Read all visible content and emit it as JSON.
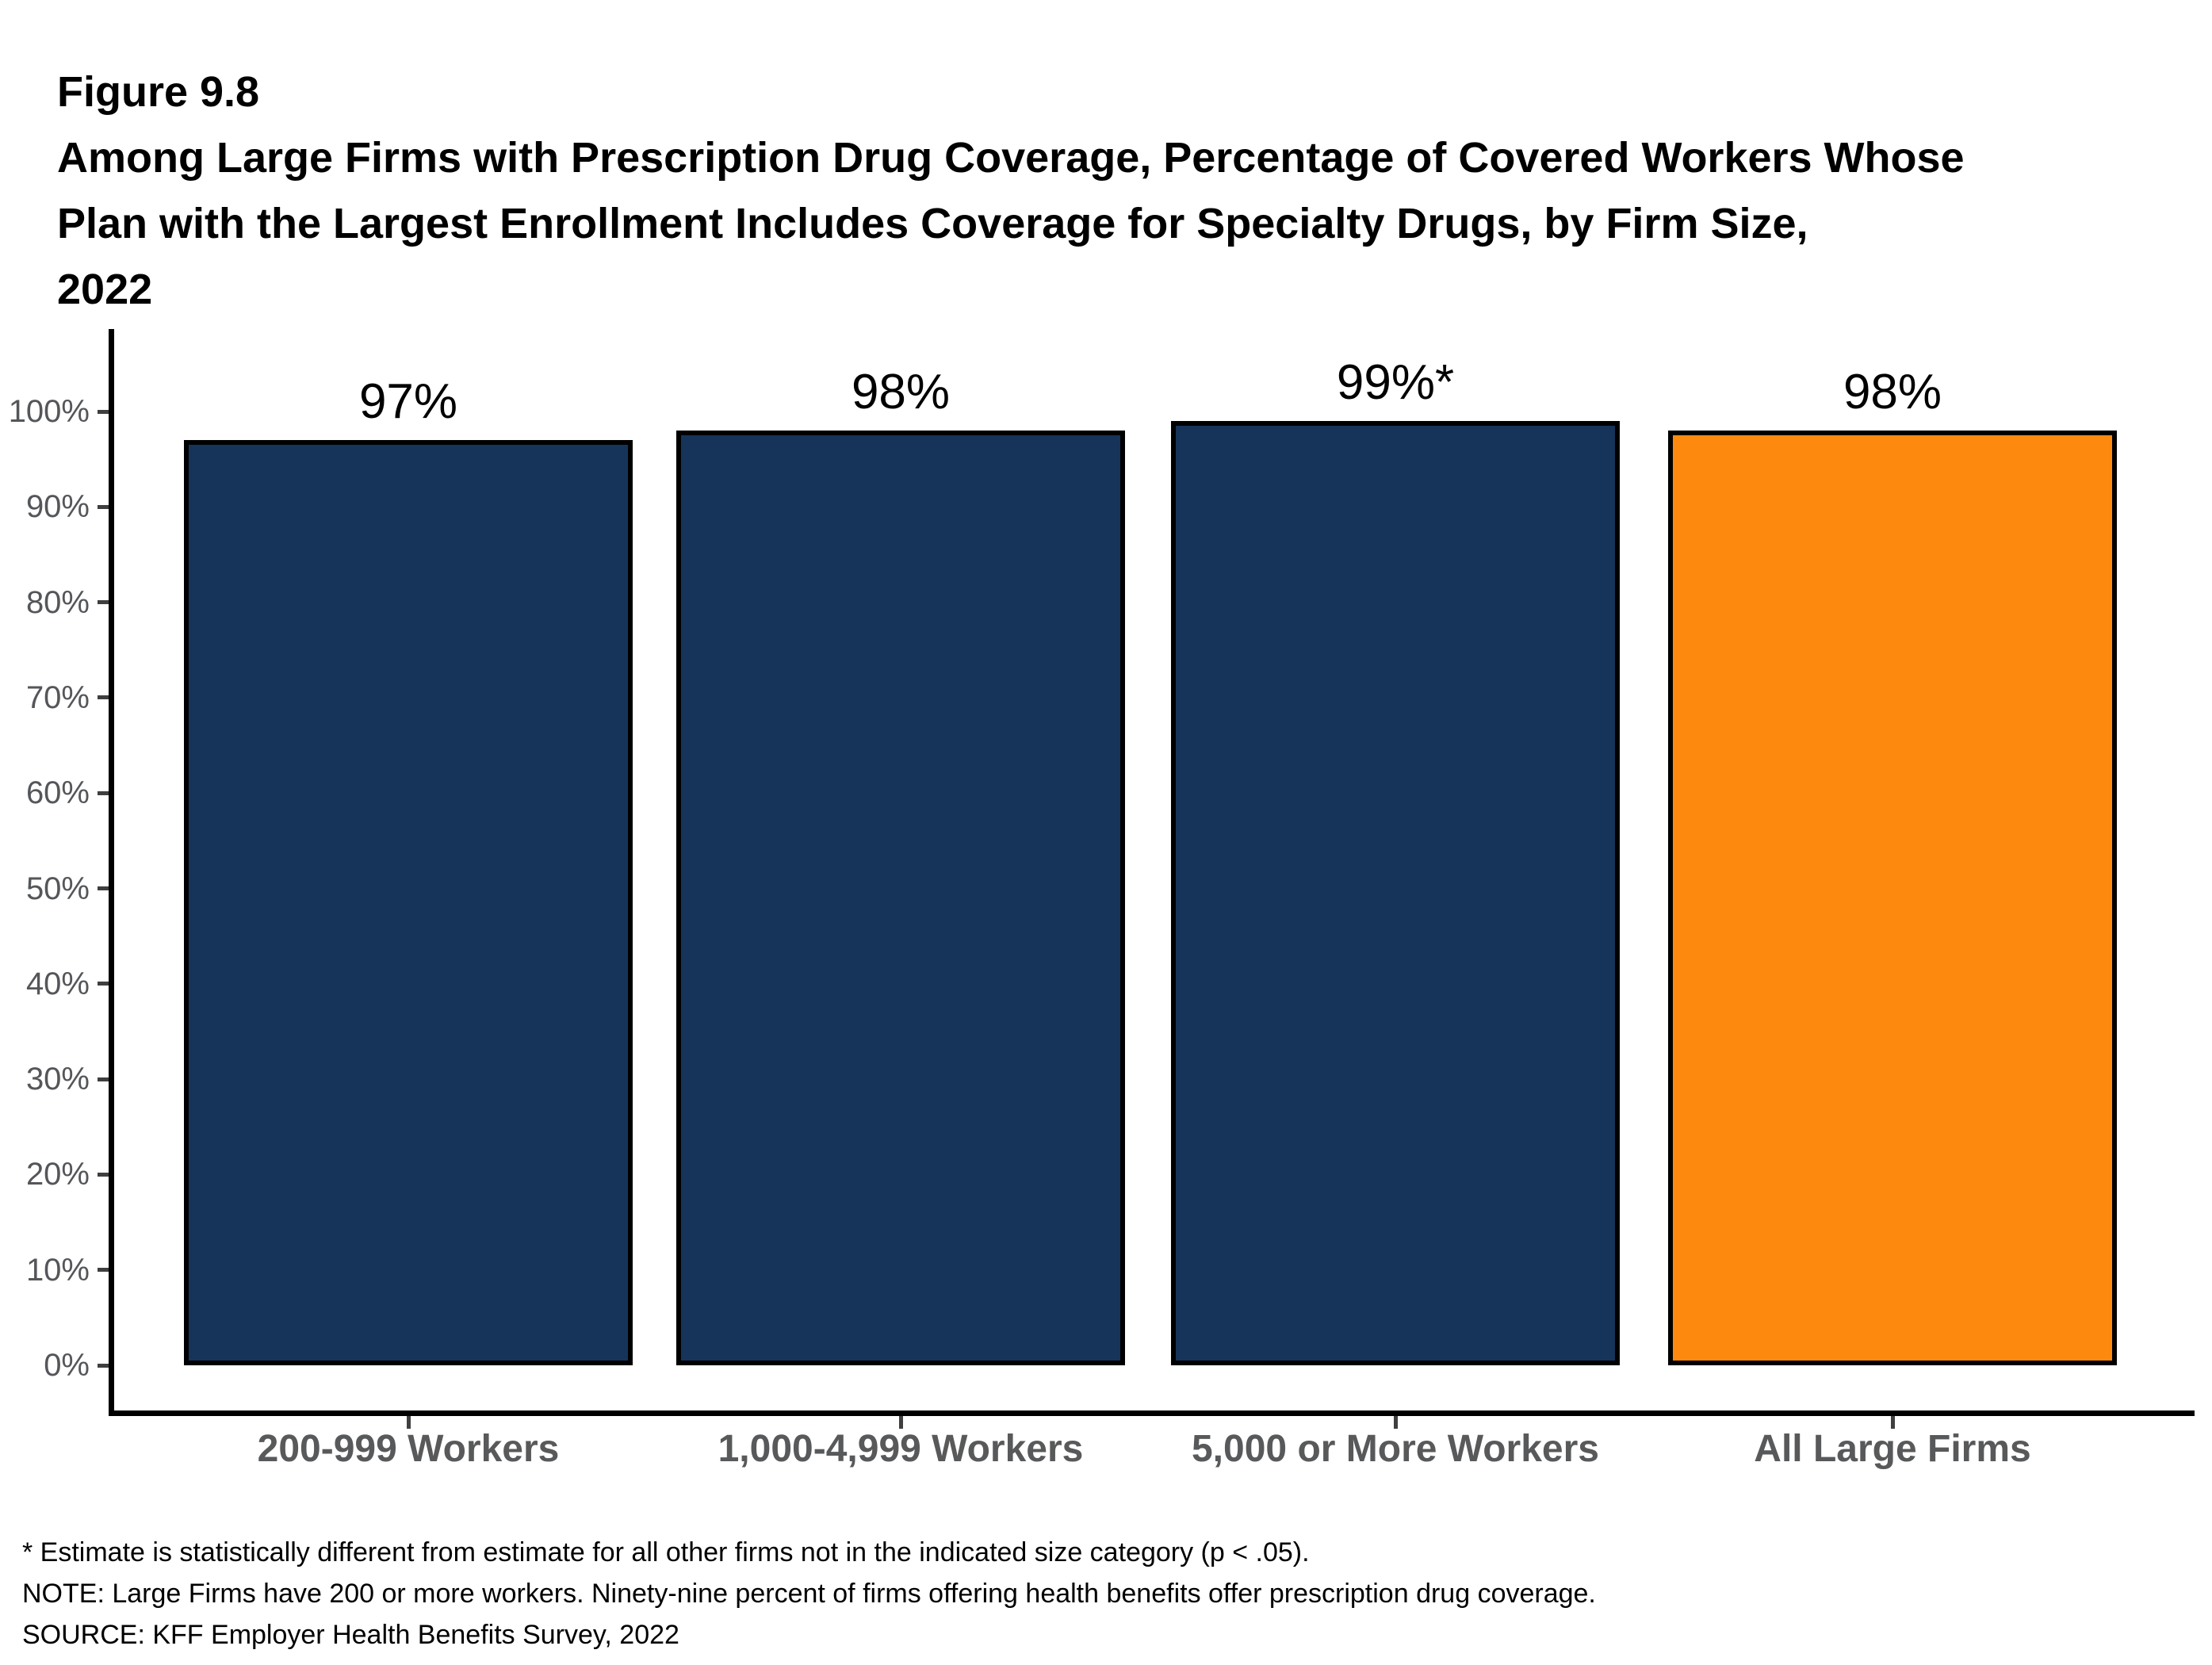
{
  "figure": {
    "label": "Figure 9.8",
    "title_lines": [
      "Among Large Firms with Prescription Drug Coverage, Percentage of Covered Workers Whose",
      "Plan with the Largest Enrollment Includes Coverage for Specialty Drugs, by Firm Size,",
      "2022"
    ]
  },
  "chart_data": {
    "type": "bar",
    "title": "Among Large Firms with Prescription Drug Coverage, Percentage of Covered Workers Whose Plan with the Largest Enrollment Includes Coverage for Specialty Drugs, by Firm Size, 2022",
    "categories": [
      "200-999 Workers",
      "1,000-4,999 Workers",
      "5,000 or More Workers",
      "All Large Firms"
    ],
    "values": [
      97,
      98,
      99,
      98
    ],
    "value_labels": [
      "97%",
      "98%",
      "99%*",
      "98%"
    ],
    "bar_colors": [
      "#163459",
      "#163459",
      "#163459",
      "#FD8A0F"
    ],
    "xlabel": "",
    "ylabel": "",
    "ylim": [
      0,
      100
    ],
    "ytick_step": 10,
    "ytick_labels": [
      "0%",
      "10%",
      "20%",
      "30%",
      "40%",
      "50%",
      "60%",
      "70%",
      "80%",
      "90%",
      "100%"
    ],
    "grid": false,
    "legend": false
  },
  "colors": {
    "navy": "#163459",
    "orange": "#FD8A0F",
    "bar_border": "#000000",
    "axis_line": "#000000",
    "tick": "#3F3F3F",
    "ytick_text": "#54565A",
    "category_text": "#58595B",
    "value_text": "#000000",
    "title_text": "#000000",
    "background": "#FFFFFF"
  },
  "footnotes": {
    "asterisk": "* Estimate is statistically different from estimate for all other firms not in the indicated size category (p < .05).",
    "note": "NOTE: Large Firms have 200 or more workers. Ninety-nine percent of firms offering health benefits offer prescription drug coverage.",
    "source": "SOURCE: KFF Employer Health Benefits Survey, 2022"
  }
}
